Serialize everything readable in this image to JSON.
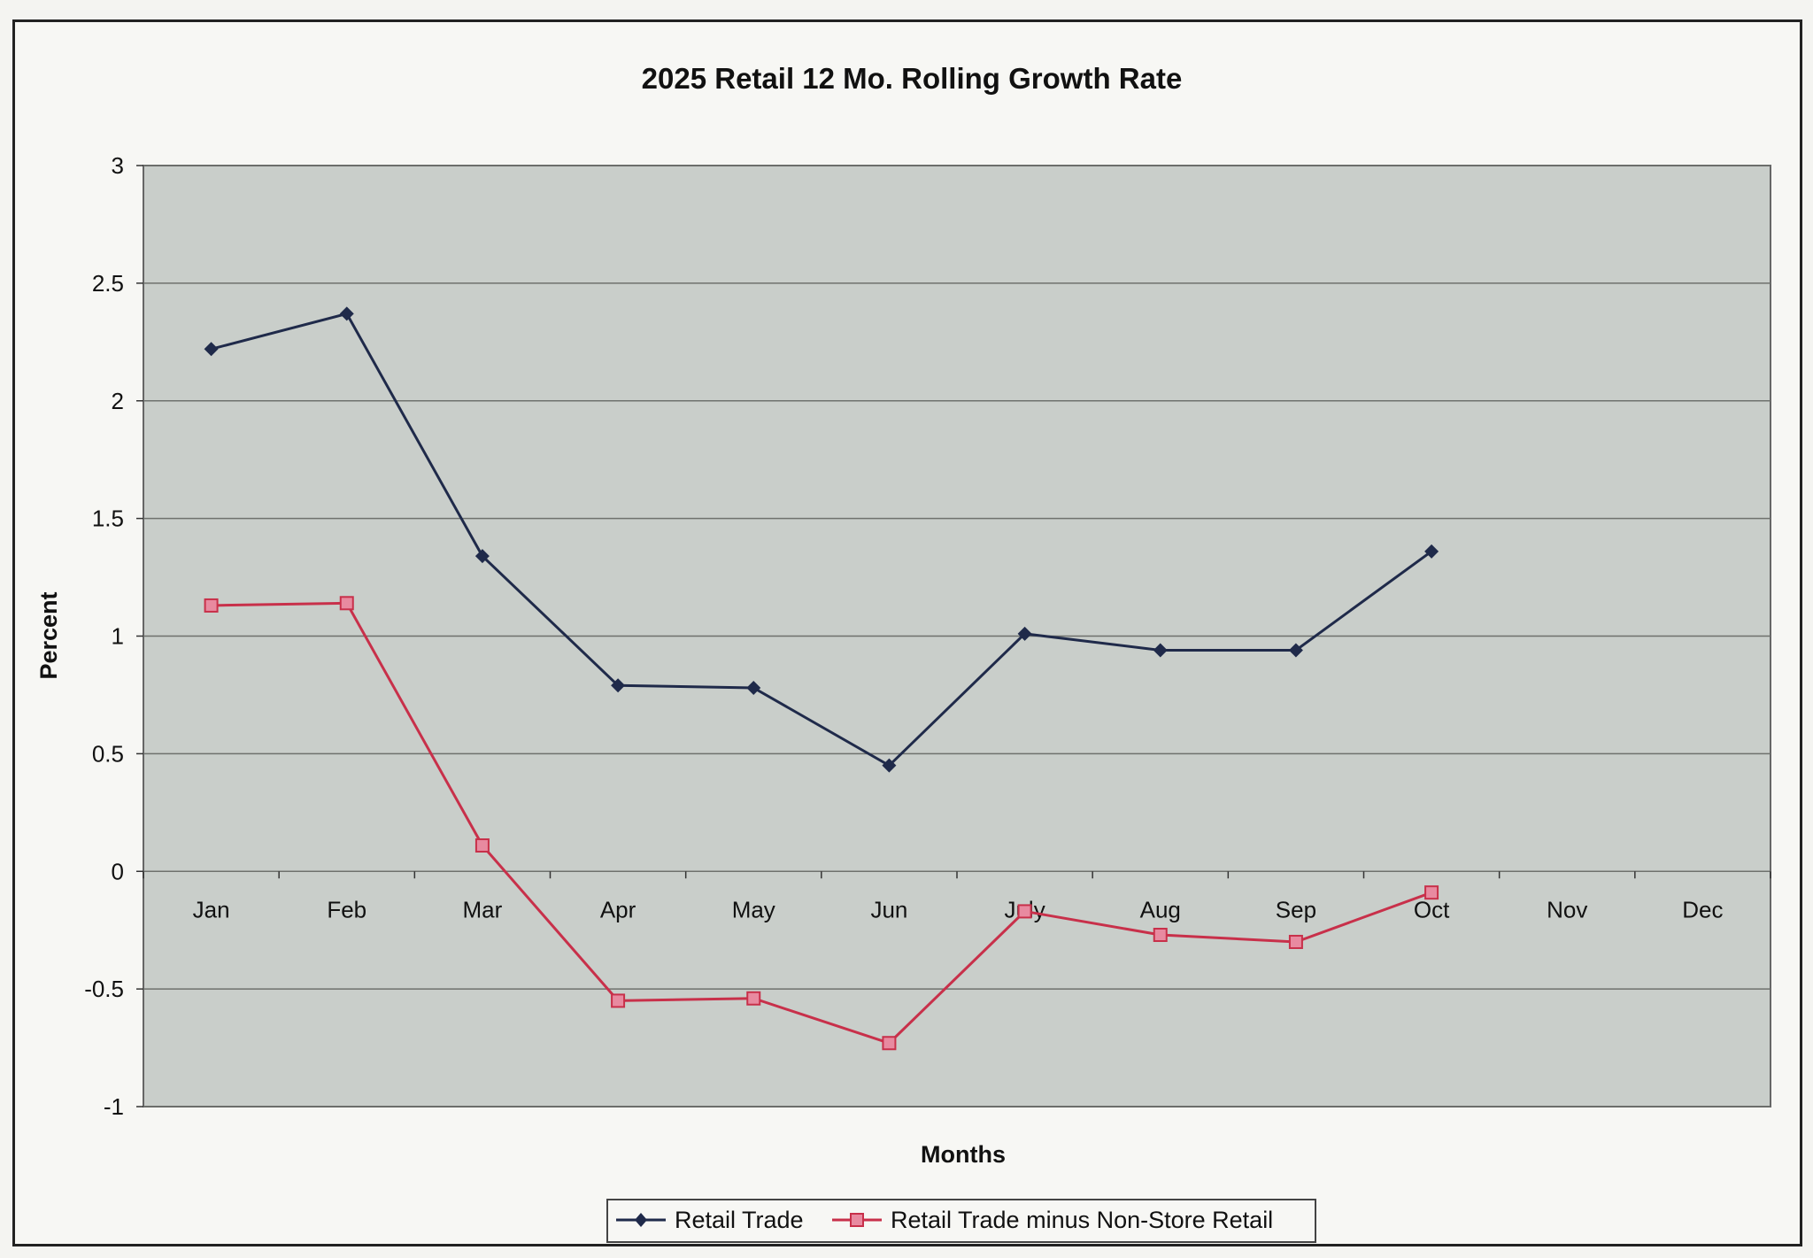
{
  "chart_data": {
    "type": "line",
    "title": "2025 Retail 12 Mo. Rolling Growth Rate",
    "xlabel": "Months",
    "ylabel": "Percent",
    "ylim": [
      -1,
      3
    ],
    "yticks": [
      "3",
      "2.5",
      "2",
      "1.5",
      "1",
      "0.5",
      "0",
      "-0.5",
      "-1"
    ],
    "categories": [
      "Jan",
      "Feb",
      "Mar",
      "Apr",
      "May",
      "Jun",
      "July",
      "Aug",
      "Sep",
      "Oct",
      "Nov",
      "Dec"
    ],
    "grid": true,
    "legend_position": "bottom",
    "series": [
      {
        "name": "Retail Trade",
        "color": "#1f2a4a",
        "marker": "diamond",
        "values": [
          2.22,
          2.37,
          1.34,
          0.79,
          0.78,
          0.45,
          1.01,
          0.94,
          0.94,
          1.36,
          null,
          null
        ]
      },
      {
        "name": "Retail Trade minus Non-Store Retail",
        "color": "#c8304a",
        "marker": "square",
        "values": [
          1.13,
          1.14,
          0.11,
          -0.55,
          -0.54,
          -0.73,
          -0.17,
          -0.27,
          -0.3,
          -0.09,
          null,
          null
        ]
      }
    ]
  },
  "colors": {
    "plot_background": "#c9ceca",
    "gridline": "#6e716d"
  }
}
